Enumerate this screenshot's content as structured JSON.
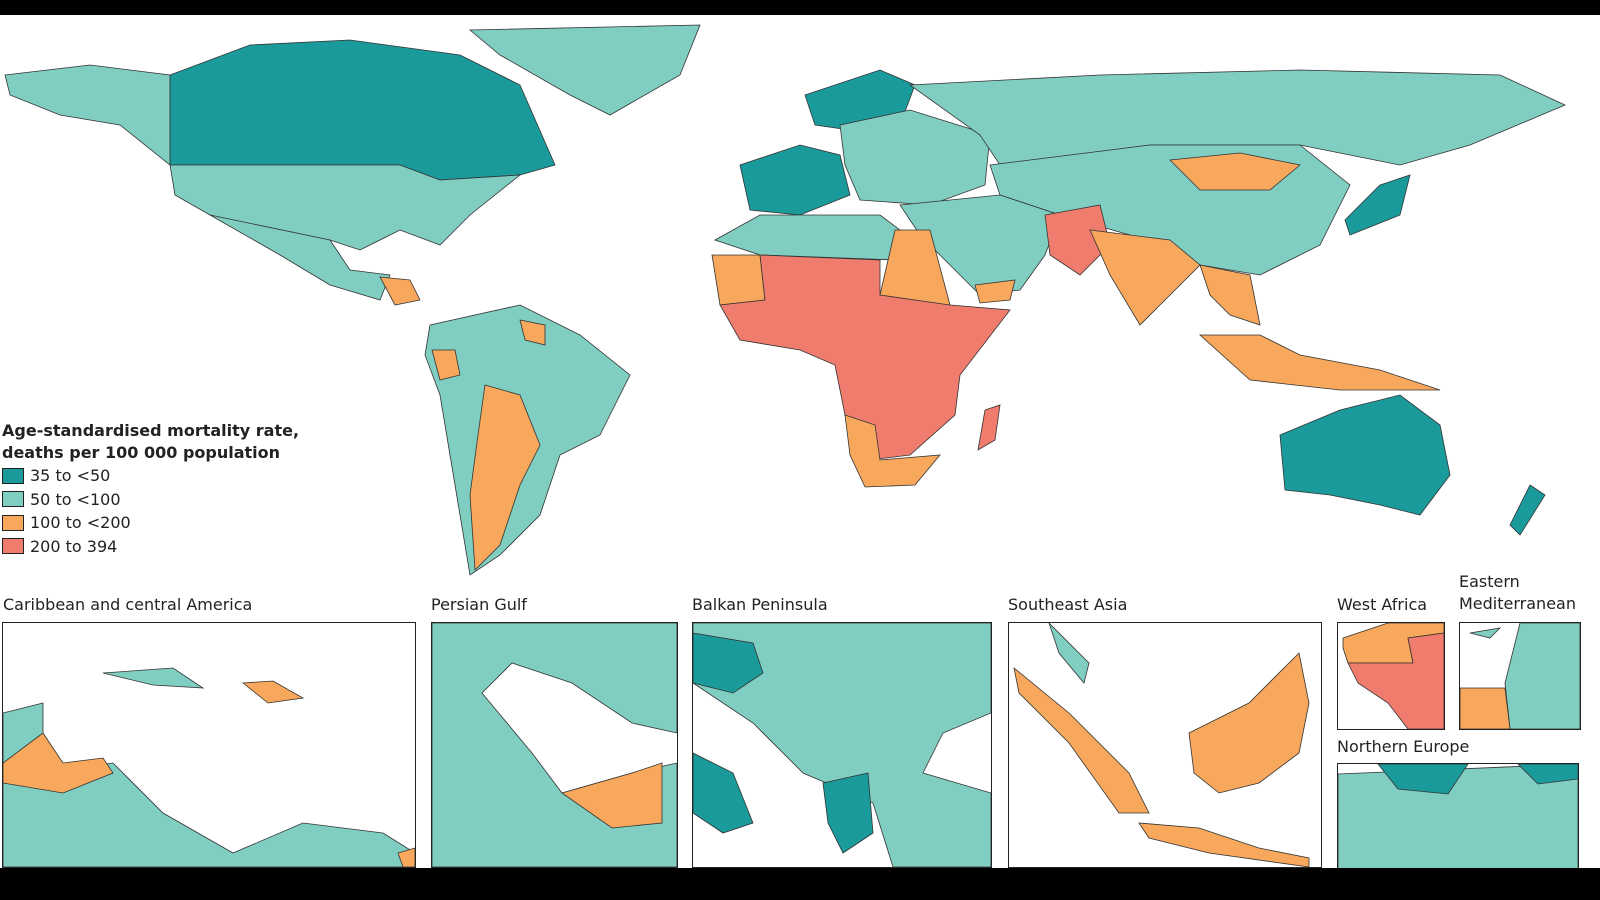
{
  "legend": {
    "title_line1": "Age-standardised mortality rate,",
    "title_line2": "deaths per 100 000 population",
    "items": [
      {
        "label": "35 to <50",
        "color": "#1a9a9a"
      },
      {
        "label": "50 to <100",
        "color": "#80cdc1"
      },
      {
        "label": "100 to <200",
        "color": "#f7a85c"
      },
      {
        "label": "200 to 394",
        "color": "#f07c6e"
      }
    ]
  },
  "insets": [
    {
      "title": "Caribbean and central America"
    },
    {
      "title": "Persian Gulf"
    },
    {
      "title": "Balkan Peninsula"
    },
    {
      "title": "Southeast Asia"
    },
    {
      "title": "West Africa"
    },
    {
      "title": "Eastern Mediterranean"
    },
    {
      "title": "Northern Europe"
    }
  ]
}
